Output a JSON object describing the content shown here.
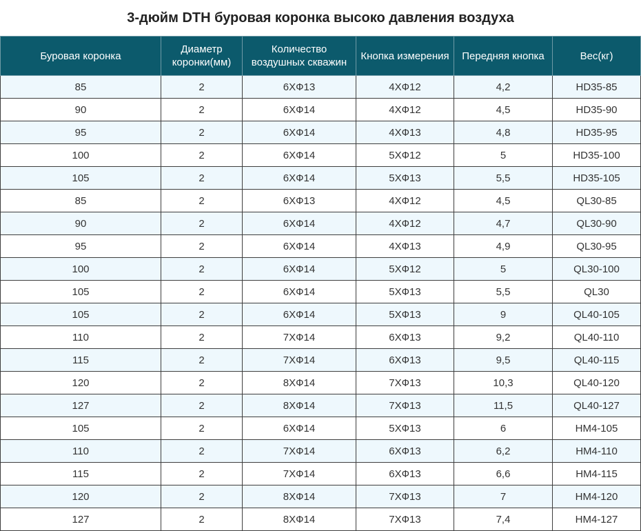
{
  "title": "3-дюйм DTH буровая коронка высоко давления воздуха",
  "table": {
    "headers": [
      [
        "Буровая коронка"
      ],
      [
        "Диаметр",
        "коронки(мм)"
      ],
      [
        "Количество",
        "воздушных скважин"
      ],
      [
        "Кнопка измерения"
      ],
      [
        "Передняя кнопка"
      ],
      [
        "Вес(кг)"
      ]
    ],
    "rows": [
      [
        "85",
        "2",
        "6XФ13",
        "4XФ12",
        "4,2",
        "HD35-85"
      ],
      [
        "90",
        "2",
        "6XФ14",
        "4XФ12",
        "4,5",
        "HD35-90"
      ],
      [
        "95",
        "2",
        "6XФ14",
        "4XФ13",
        "4,8",
        "HD35-95"
      ],
      [
        "100",
        "2",
        "6XФ14",
        "5XФ12",
        "5",
        "HD35-100"
      ],
      [
        "105",
        "2",
        "6XФ14",
        "5XФ13",
        "5,5",
        "HD35-105"
      ],
      [
        "85",
        "2",
        "6XФ13",
        "4XФ12",
        "4,5",
        "QL30-85"
      ],
      [
        "90",
        "2",
        "6XФ14",
        "4XФ12",
        "4,7",
        "QL30-90"
      ],
      [
        "95",
        "2",
        "6XФ14",
        "4XФ13",
        "4,9",
        "QL30-95"
      ],
      [
        "100",
        "2",
        "6XФ14",
        "5XФ12",
        "5",
        "QL30-100"
      ],
      [
        "105",
        "2",
        "6XФ14",
        "5XФ13",
        "5,5",
        "QL30"
      ],
      [
        "105",
        "2",
        "6XФ14",
        "5XФ13",
        "9",
        "QL40-105"
      ],
      [
        "110",
        "2",
        "7XФ14",
        "6XФ13",
        "9,2",
        "QL40-110"
      ],
      [
        "115",
        "2",
        "7XФ14",
        "6XФ13",
        "9,5",
        "QL40-115"
      ],
      [
        "120",
        "2",
        "8XФ14",
        "7XФ13",
        "10,3",
        "QL40-120"
      ],
      [
        "127",
        "2",
        "8XФ14",
        "7XФ13",
        "11,5",
        "QL40-127"
      ],
      [
        "105",
        "2",
        "6XФ14",
        "5XФ13",
        "6",
        "HM4-105"
      ],
      [
        "110",
        "2",
        "7XФ14",
        "6XФ13",
        "6,2",
        "HM4-110"
      ],
      [
        "115",
        "2",
        "7XФ14",
        "6XФ13",
        "6,6",
        "HM4-115"
      ],
      [
        "120",
        "2",
        "8XФ14",
        "7XФ13",
        "7",
        "HM4-120"
      ],
      [
        "127",
        "2",
        "8XФ14",
        "7XФ13",
        "7,4",
        "HM4-127"
      ]
    ]
  },
  "colors": {
    "header_background": "#0c5a6c",
    "header_text": "#ffffff",
    "row_stripe": "#eef8fd",
    "row_plain": "#ffffff"
  }
}
